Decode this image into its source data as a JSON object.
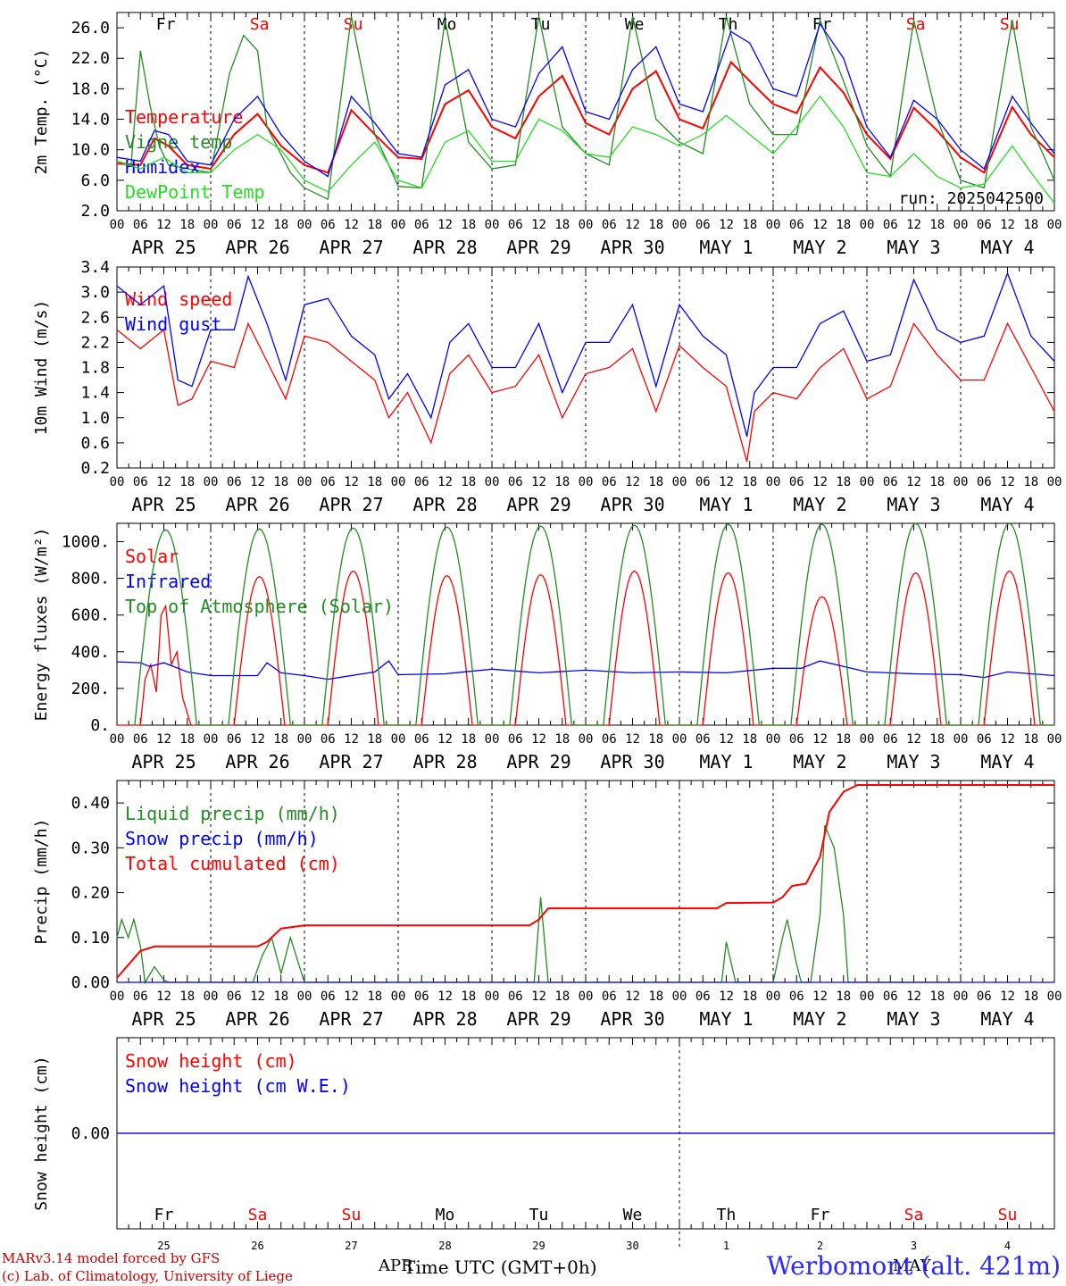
{
  "run_label": "run: 2025042500",
  "hour_ticks": [
    "00",
    "06",
    "12",
    "18"
  ],
  "date_labels": [
    "APR 25",
    "APR 26",
    "APR 27",
    "APR 28",
    "APR 29",
    "APR 30",
    "MAY  1",
    "MAY  2",
    "MAY  3",
    "MAY  4"
  ],
  "weekdays": [
    {
      "label": "Fr",
      "weekend": false
    },
    {
      "label": "Sa",
      "weekend": true
    },
    {
      "label": "Su",
      "weekend": true
    },
    {
      "label": "Mo",
      "weekend": false
    },
    {
      "label": "Tu",
      "weekend": false
    },
    {
      "label": "We",
      "weekend": false
    },
    {
      "label": "Th",
      "weekend": false
    },
    {
      "label": "Fr",
      "weekend": false
    },
    {
      "label": "Sa",
      "weekend": true
    },
    {
      "label": "Su",
      "weekend": true
    }
  ],
  "day_numbers": [
    "25",
    "26",
    "27",
    "28",
    "29",
    "30",
    "1",
    "2",
    "3",
    "4"
  ],
  "colors": {
    "red": "#ff0000",
    "green": "#228b22",
    "blue": "#0000ff",
    "lightgreen": "#22dd22",
    "axis": "#000000",
    "grid": "#000000"
  },
  "footer": {
    "model": "MARv3.14 model forced by GFS",
    "lab": "(c) Lab. of Climatology, University of Liege",
    "axis_label": "Time UTC (GMT+0h)",
    "apr": "APR",
    "may": "MAY",
    "site": "Werbomont (alt. 421m)"
  },
  "chart_data": [
    {
      "type": "line",
      "ylabel": "2m Temp. (°C)",
      "ylim": [
        2.0,
        28.0
      ],
      "yticks": [
        "2.0",
        "6.0",
        "10.0",
        "14.0",
        "18.0",
        "22.0",
        "26.0"
      ],
      "x_unit": "day index from APR 25 00 UTC (0–10)",
      "series": [
        {
          "name": "Temperature",
          "color": "red",
          "x": [
            0,
            0.25,
            0.4,
            0.55,
            0.75,
            1,
            1.25,
            1.5,
            1.75,
            2,
            2.25,
            2.5,
            2.75,
            3,
            3.25,
            3.5,
            3.75,
            4,
            4.25,
            4.5,
            4.75,
            5,
            5.25,
            5.5,
            5.75,
            6,
            6.25,
            6.55,
            6.75,
            7,
            7.25,
            7.5,
            7.75,
            8,
            8.25,
            8.5,
            8.75,
            9,
            9.25,
            9.55,
            9.75,
            10
          ],
          "y": [
            8.2,
            8,
            11.5,
            10.5,
            8,
            7.5,
            12,
            14.7,
            10.5,
            8,
            7,
            15.2,
            12,
            9,
            8.8,
            16,
            17.8,
            13,
            11.5,
            17,
            19.7,
            13.5,
            12,
            18,
            20.3,
            14,
            12.8,
            21.5,
            19,
            16,
            14.8,
            20.8,
            17.5,
            12,
            8.8,
            15.5,
            12.5,
            9,
            7,
            15.6,
            12,
            9
          ]
        },
        {
          "name": "Vigne temp",
          "color": "green",
          "x": [
            0,
            0.15,
            0.25,
            0.35,
            0.45,
            0.55,
            0.75,
            1,
            1.2,
            1.35,
            1.5,
            1.6,
            1.85,
            2,
            2.25,
            2.5,
            2.75,
            2.9,
            3,
            3.25,
            3.5,
            3.75,
            4,
            4.25,
            4.5,
            4.75,
            5,
            5.25,
            5.5,
            5.75,
            6,
            6.25,
            6.5,
            6.75,
            7,
            7.25,
            7.5,
            7.75,
            8,
            8.25,
            8.5,
            8.75,
            9,
            9.25,
            9.55,
            9.75,
            10
          ],
          "y": [
            8.5,
            8,
            23,
            16,
            10.5,
            8,
            7.5,
            7,
            20,
            25,
            23,
            13,
            7,
            5,
            3.5,
            27.5,
            12,
            8,
            5.2,
            5,
            27,
            11,
            7.5,
            8,
            27.5,
            13,
            9.5,
            8,
            27.5,
            14,
            11,
            9.5,
            27.5,
            16,
            12,
            12,
            27,
            19,
            10.5,
            6.5,
            27,
            14,
            6,
            5,
            27,
            13,
            6
          ]
        },
        {
          "name": "Humidex",
          "color": "blue",
          "x": [
            0,
            0.25,
            0.4,
            0.55,
            0.75,
            1,
            1.25,
            1.5,
            1.75,
            2,
            2.25,
            2.5,
            2.75,
            3,
            3.25,
            3.5,
            3.75,
            4,
            4.25,
            4.5,
            4.75,
            5,
            5.25,
            5.5,
            5.75,
            6,
            6.25,
            6.55,
            6.75,
            7,
            7.25,
            7.5,
            7.75,
            8,
            8.25,
            8.5,
            8.75,
            9,
            9.25,
            9.55,
            9.75,
            10
          ],
          "y": [
            9,
            8.5,
            12.5,
            12,
            8.5,
            8,
            14,
            17,
            12,
            8.5,
            6.5,
            17,
            13.5,
            9.5,
            9,
            18.5,
            20.5,
            14,
            13,
            20,
            23.5,
            15,
            14,
            20.5,
            23.5,
            16,
            15,
            25.5,
            24,
            18,
            17,
            26.5,
            22,
            13,
            9,
            16.5,
            14,
            10,
            7.5,
            17,
            13.5,
            9.5
          ]
        },
        {
          "name": "DewPoint Temp",
          "color": "lightgreen",
          "x": [
            0,
            0.25,
            0.5,
            0.75,
            1,
            1.25,
            1.5,
            1.75,
            2,
            2.25,
            2.5,
            2.75,
            3,
            3.25,
            3.5,
            3.75,
            4,
            4.25,
            4.5,
            4.75,
            5,
            5.25,
            5.5,
            5.75,
            6,
            6.25,
            6.5,
            6.75,
            7,
            7.25,
            7.5,
            7.75,
            8,
            8.25,
            8.5,
            8.75,
            9,
            9.25,
            9.55,
            9.75,
            10
          ],
          "y": [
            8.5,
            7.5,
            9,
            7,
            7,
            10,
            12,
            10,
            6,
            4.5,
            8,
            11,
            6,
            5,
            11,
            12.5,
            8.5,
            8.5,
            14,
            12.5,
            9.5,
            9,
            13,
            12,
            10.5,
            12,
            14.5,
            12,
            9.5,
            13,
            17,
            13,
            7,
            6.5,
            9.5,
            6.5,
            5,
            5.5,
            10.5,
            7,
            3
          ]
        }
      ]
    },
    {
      "type": "line",
      "ylabel": "10m Wind (m/s)",
      "ylim": [
        0.2,
        3.4
      ],
      "yticks": [
        "0.2",
        "0.6",
        "1.0",
        "1.4",
        "1.8",
        "2.2",
        "2.6",
        "3.0",
        "3.4"
      ],
      "series": [
        {
          "name": "Wind speed",
          "color": "red",
          "x": [
            0,
            0.25,
            0.5,
            0.65,
            0.8,
            1,
            1.25,
            1.4,
            1.6,
            1.8,
            2,
            2.25,
            2.5,
            2.75,
            2.9,
            3.1,
            3.35,
            3.55,
            3.75,
            4,
            4.25,
            4.5,
            4.75,
            5,
            5.25,
            5.5,
            5.75,
            6,
            6.25,
            6.5,
            6.72,
            6.8,
            7,
            7.25,
            7.5,
            7.75,
            8,
            8.25,
            8.5,
            8.75,
            9,
            9.25,
            9.5,
            9.75,
            10
          ],
          "y": [
            2.4,
            2.1,
            2.4,
            1.2,
            1.3,
            1.9,
            1.8,
            2.5,
            1.9,
            1.3,
            2.3,
            2.2,
            1.9,
            1.6,
            1.0,
            1.4,
            0.6,
            1.7,
            2.0,
            1.4,
            1.5,
            2.0,
            1.0,
            1.7,
            1.8,
            2.1,
            1.1,
            2.15,
            1.8,
            1.5,
            0.3,
            1.1,
            1.4,
            1.3,
            1.8,
            2.1,
            1.3,
            1.5,
            2.5,
            2.0,
            1.6,
            1.6,
            2.5,
            1.8,
            1.1
          ]
        },
        {
          "name": "Wind gust",
          "color": "blue",
          "x": [
            0,
            0.25,
            0.5,
            0.65,
            0.8,
            1,
            1.25,
            1.4,
            1.6,
            1.8,
            2,
            2.25,
            2.5,
            2.75,
            2.9,
            3.1,
            3.35,
            3.55,
            3.75,
            4,
            4.25,
            4.5,
            4.75,
            5,
            5.25,
            5.5,
            5.75,
            6,
            6.25,
            6.5,
            6.72,
            6.8,
            7,
            7.25,
            7.5,
            7.75,
            8,
            8.25,
            8.5,
            8.75,
            9,
            9.25,
            9.5,
            9.75,
            10
          ],
          "y": [
            3.1,
            2.8,
            3.1,
            1.6,
            1.5,
            2.4,
            2.4,
            3.25,
            2.5,
            1.6,
            2.8,
            2.9,
            2.3,
            2.0,
            1.3,
            1.7,
            1.0,
            2.2,
            2.5,
            1.8,
            1.8,
            2.5,
            1.4,
            2.2,
            2.2,
            2.8,
            1.5,
            2.8,
            2.3,
            2.0,
            0.7,
            1.4,
            1.8,
            1.8,
            2.5,
            2.7,
            1.9,
            2.0,
            3.2,
            2.4,
            2.2,
            2.3,
            3.3,
            2.3,
            1.9
          ]
        }
      ]
    },
    {
      "type": "line",
      "ylabel": "Energy fluxes (W/m²)",
      "ylim": [
        0,
        1100
      ],
      "yticks": [
        "0.",
        "200.",
        "400.",
        "600.",
        "800.",
        "1000."
      ],
      "series": [
        {
          "name": "Solar",
          "color": "red",
          "peaks": [
            650,
            810,
            840,
            815,
            820,
            840,
            830,
            700,
            830,
            840
          ],
          "width": 0.27
        },
        {
          "name": "Infrared",
          "color": "blue",
          "x": [
            0,
            0.25,
            0.35,
            0.5,
            0.75,
            1,
            1.5,
            1.6,
            1.75,
            2,
            2.25,
            2.75,
            2.9,
            3,
            3.5,
            4,
            4.5,
            5,
            5.5,
            6,
            6.5,
            7,
            7.3,
            7.5,
            8,
            8.5,
            9,
            9.25,
            9.5,
            10
          ],
          "y": [
            345,
            340,
            320,
            340,
            290,
            270,
            270,
            340,
            285,
            270,
            250,
            290,
            350,
            275,
            280,
            305,
            285,
            300,
            285,
            290,
            285,
            310,
            310,
            350,
            290,
            280,
            275,
            260,
            290,
            270
          ]
        },
        {
          "name": "Top of Atmosphere (Solar)",
          "color": "green",
          "peaks": [
            1065,
            1070,
            1075,
            1080,
            1085,
            1090,
            1095,
            1095,
            1100,
            1100
          ],
          "width": 0.33
        }
      ]
    },
    {
      "type": "line",
      "ylabel": "Precip (mm/h)",
      "ylim": [
        0,
        0.45
      ],
      "yticks": [
        "0.00",
        "0.10",
        "0.20",
        "0.30",
        "0.40"
      ],
      "series": [
        {
          "name": "Liquid precip (mm/h)",
          "color": "green",
          "x": [
            0,
            0.05,
            0.12,
            0.18,
            0.25,
            0.3,
            0.4,
            0.5,
            0.55,
            0.6,
            1.45,
            1.55,
            1.65,
            1.75,
            1.85,
            2,
            3.5,
            4.45,
            4.52,
            4.6,
            5,
            6.45,
            6.5,
            6.6,
            7,
            7.1,
            7.15,
            7.25,
            7.3,
            7.4,
            7.5,
            7.55,
            7.65,
            7.75,
            7.8,
            9
          ],
          "y": [
            0.1,
            0.14,
            0.1,
            0.14,
            0.08,
            0,
            0.035,
            0.005,
            0,
            0,
            0,
            0.06,
            0.1,
            0.02,
            0.1,
            0,
            0,
            0,
            0.19,
            0,
            0,
            0,
            0.09,
            0,
            0,
            0.1,
            0.14,
            0.04,
            0,
            0,
            0.15,
            0.35,
            0.3,
            0.15,
            0,
            0
          ]
        },
        {
          "name": "Snow precip (mm/h)",
          "color": "blue",
          "x": [
            0,
            10
          ],
          "y": [
            0,
            0
          ]
        },
        {
          "name": "Total cumulated (cm)",
          "color": "red",
          "x": [
            0,
            0.25,
            0.4,
            1.5,
            1.6,
            1.75,
            2,
            4.4,
            4.5,
            4.6,
            6.4,
            6.5,
            7,
            7.1,
            7.2,
            7.35,
            7.5,
            7.6,
            7.75,
            7.9,
            10
          ],
          "y": [
            0.01,
            0.07,
            0.08,
            0.08,
            0.09,
            0.12,
            0.127,
            0.127,
            0.14,
            0.165,
            0.165,
            0.177,
            0.178,
            0.19,
            0.215,
            0.22,
            0.28,
            0.38,
            0.425,
            0.44,
            0.44
          ]
        }
      ]
    },
    {
      "type": "line",
      "ylabel": "Snow height (cm)",
      "ylim": [
        -1,
        1
      ],
      "yticks": [
        "0.00"
      ],
      "series": [
        {
          "name": "Snow height (cm)",
          "color": "red",
          "x": [
            0,
            10
          ],
          "y": [
            0,
            0
          ]
        },
        {
          "name": "Snow height (cm W.E.)",
          "color": "blue",
          "x": [
            0,
            10
          ],
          "y": [
            0,
            0
          ]
        }
      ]
    }
  ]
}
